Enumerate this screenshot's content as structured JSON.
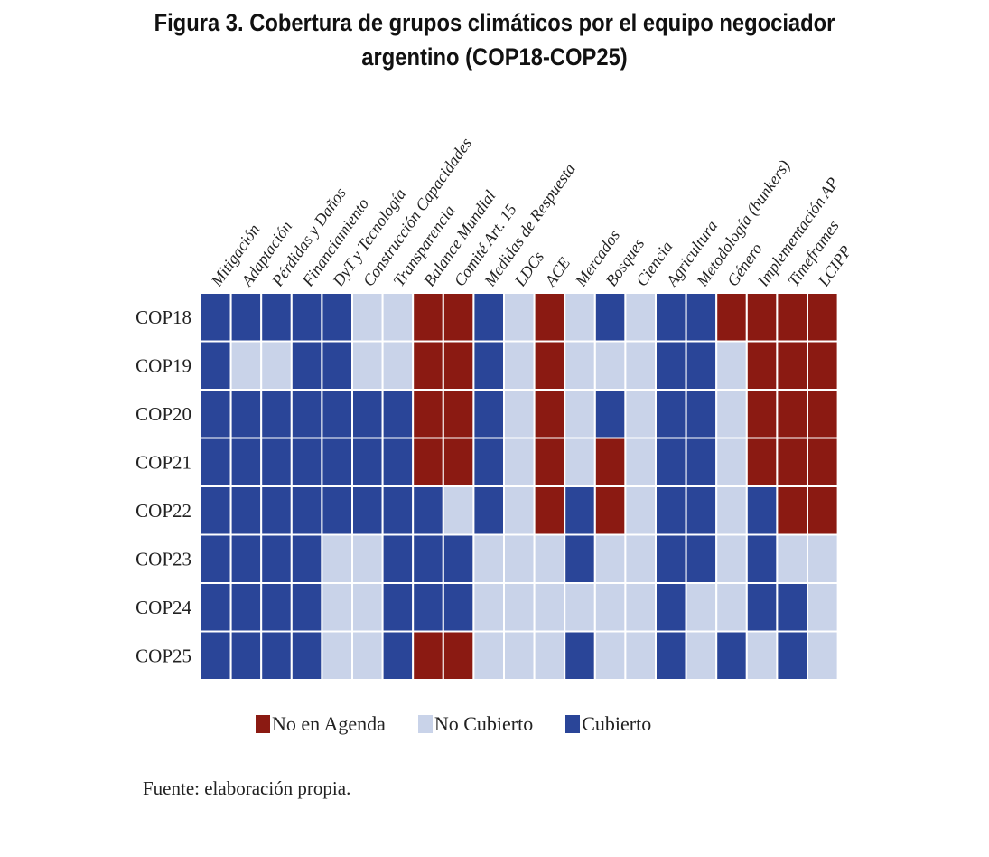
{
  "title": {
    "line1": "Figura 3. Cobertura de grupos climáticos por el equipo negociador",
    "line2": "argentino (COP18-COP25)"
  },
  "source": "Fuente: elaboración propia.",
  "legend": [
    {
      "code": "N",
      "label": "No en Agenda",
      "color": "#8b1a12"
    },
    {
      "code": "L",
      "label": "No Cubierto",
      "color": "#c9d3e9"
    },
    {
      "code": "C",
      "label": "Cubierto",
      "color": "#2a4598"
    }
  ],
  "chart_data": {
    "type": "heatmap",
    "columns": [
      "Mitigación",
      "Adaptación",
      "Pérdidas y Daños",
      "Financiamiento",
      "DyT y Tecnología",
      "Construcción Capacidades",
      "Transparencia",
      "Balance Mundial",
      "Comité Art. 15",
      "Medidas de Respuesta",
      "LDCs",
      "ACE",
      "Mercados",
      "Bosques",
      "Ciencia",
      "Agricultura",
      "Metodología (bunkers)",
      "Género",
      "Implementación AP",
      "Timeframes",
      "LCIPP"
    ],
    "rows": [
      "COP18",
      "COP19",
      "COP20",
      "COP21",
      "COP22",
      "COP23",
      "COP24",
      "COP25"
    ],
    "categories": {
      "N": "No en Agenda",
      "L": "No Cubierto",
      "C": "Cubierto"
    },
    "cells": [
      [
        "C",
        "C",
        "C",
        "C",
        "C",
        "L",
        "L",
        "N",
        "N",
        "C",
        "L",
        "N",
        "L",
        "C",
        "L",
        "C",
        "C",
        "N",
        "N",
        "N",
        "N"
      ],
      [
        "C",
        "L",
        "L",
        "C",
        "C",
        "L",
        "L",
        "N",
        "N",
        "C",
        "L",
        "N",
        "L",
        "L",
        "L",
        "C",
        "C",
        "L",
        "N",
        "N",
        "N"
      ],
      [
        "C",
        "C",
        "C",
        "C",
        "C",
        "C",
        "C",
        "N",
        "N",
        "C",
        "L",
        "N",
        "L",
        "C",
        "L",
        "C",
        "C",
        "L",
        "N",
        "N",
        "N"
      ],
      [
        "C",
        "C",
        "C",
        "C",
        "C",
        "C",
        "C",
        "N",
        "N",
        "C",
        "L",
        "N",
        "L",
        "N",
        "L",
        "C",
        "C",
        "L",
        "N",
        "N",
        "N"
      ],
      [
        "C",
        "C",
        "C",
        "C",
        "C",
        "C",
        "C",
        "C",
        "L",
        "C",
        "L",
        "N",
        "C",
        "N",
        "L",
        "C",
        "C",
        "L",
        "C",
        "N",
        "N"
      ],
      [
        "C",
        "C",
        "C",
        "C",
        "L",
        "L",
        "C",
        "C",
        "C",
        "L",
        "L",
        "L",
        "C",
        "L",
        "L",
        "C",
        "C",
        "L",
        "C",
        "L",
        "L"
      ],
      [
        "C",
        "C",
        "C",
        "C",
        "L",
        "L",
        "C",
        "C",
        "C",
        "L",
        "L",
        "L",
        "L",
        "L",
        "L",
        "C",
        "L",
        "L",
        "C",
        "C",
        "L"
      ],
      [
        "C",
        "C",
        "C",
        "C",
        "L",
        "L",
        "C",
        "N",
        "N",
        "L",
        "L",
        "L",
        "C",
        "L",
        "L",
        "C",
        "L",
        "C",
        "L",
        "C",
        "L"
      ]
    ]
  }
}
